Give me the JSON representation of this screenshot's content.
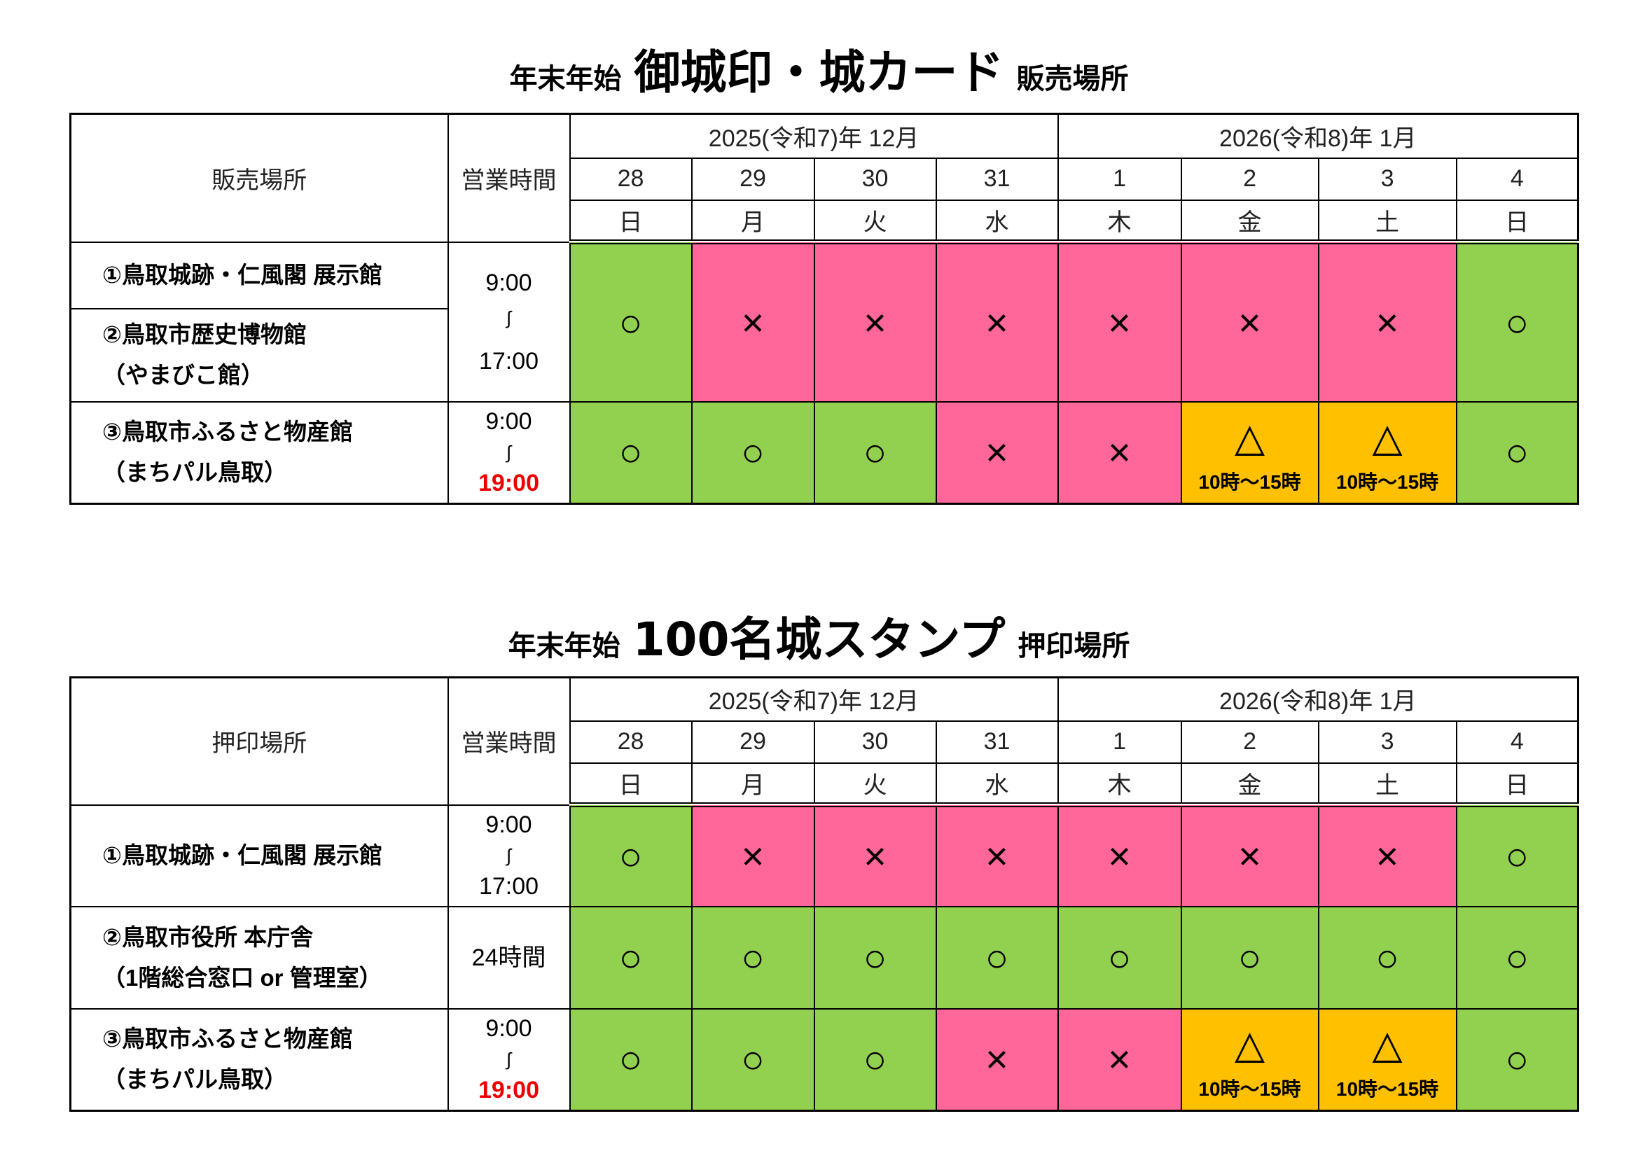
{
  "colors": {
    "available": "#92D050",
    "closed": "#FF6699",
    "limited": "#FFC000",
    "highlight_time": "#EE0000"
  },
  "symbols": {
    "o": "○",
    "x": "×",
    "t": "△"
  },
  "tables": [
    {
      "title_prefix": "年末年始",
      "title_main": "御城印・城カード",
      "title_suffix": "販売場所",
      "col_place": "販売場所",
      "col_hours": "営業時間",
      "month1": "2025(令和7)年 12月",
      "month2": "2026(令和8)年 1月",
      "dates": [
        "28",
        "29",
        "30",
        "31",
        "1",
        "2",
        "3",
        "4"
      ],
      "weekdays": [
        "日",
        "月",
        "火",
        "水",
        "木",
        "金",
        "土",
        "日"
      ],
      "rows": [
        {
          "places": [
            {
              "line1": "①鳥取城跡・仁風閣 展示館"
            },
            {
              "line1": "②鳥取市歴史博物館",
              "line2": "（やまびこ館）"
            }
          ],
          "hours": {
            "open": "9:00",
            "sep": "∫",
            "close": "17:00"
          },
          "cells": [
            {
              "s": "o"
            },
            {
              "s": "x"
            },
            {
              "s": "x"
            },
            {
              "s": "x"
            },
            {
              "s": "x"
            },
            {
              "s": "x"
            },
            {
              "s": "x"
            },
            {
              "s": "o"
            }
          ]
        },
        {
          "places": [
            {
              "line1": "③鳥取市ふるさと物産館",
              "line2": "（まちパル鳥取）"
            }
          ],
          "hours": {
            "open": "9:00",
            "sep": "∫",
            "close": "19:00",
            "close_red": true
          },
          "cells": [
            {
              "s": "o"
            },
            {
              "s": "o"
            },
            {
              "s": "o"
            },
            {
              "s": "x"
            },
            {
              "s": "x"
            },
            {
              "s": "t",
              "note": "10時～15時"
            },
            {
              "s": "t",
              "note": "10時～15時"
            },
            {
              "s": "o"
            }
          ]
        }
      ]
    },
    {
      "title_prefix": "年末年始",
      "title_main": "100名城スタンプ",
      "title_suffix": "押印場所",
      "col_place": "押印場所",
      "col_hours": "営業時間",
      "month1": "2025(令和7)年 12月",
      "month2": "2026(令和8)年 1月",
      "dates": [
        "28",
        "29",
        "30",
        "31",
        "1",
        "2",
        "3",
        "4"
      ],
      "weekdays": [
        "日",
        "月",
        "火",
        "水",
        "木",
        "金",
        "土",
        "日"
      ],
      "rows": [
        {
          "places": [
            {
              "line1": "①鳥取城跡・仁風閣 展示館"
            }
          ],
          "hours": {
            "open": "9:00",
            "sep": "∫",
            "close": "17:00"
          },
          "cells": [
            {
              "s": "o"
            },
            {
              "s": "x"
            },
            {
              "s": "x"
            },
            {
              "s": "x"
            },
            {
              "s": "x"
            },
            {
              "s": "x"
            },
            {
              "s": "x"
            },
            {
              "s": "o"
            }
          ]
        },
        {
          "places": [
            {
              "line1": "②鳥取市役所 本庁舎",
              "line2": "（1階総合窓口 or 管理室）"
            }
          ],
          "hours": {
            "text": "24時間"
          },
          "cells": [
            {
              "s": "o"
            },
            {
              "s": "o"
            },
            {
              "s": "o"
            },
            {
              "s": "o"
            },
            {
              "s": "o"
            },
            {
              "s": "o"
            },
            {
              "s": "o"
            },
            {
              "s": "o"
            }
          ]
        },
        {
          "places": [
            {
              "line1": "③鳥取市ふるさと物産館",
              "line2": "（まちパル鳥取）"
            }
          ],
          "hours": {
            "open": "9:00",
            "sep": "∫",
            "close": "19:00",
            "close_red": true
          },
          "cells": [
            {
              "s": "o"
            },
            {
              "s": "o"
            },
            {
              "s": "o"
            },
            {
              "s": "x"
            },
            {
              "s": "x"
            },
            {
              "s": "t",
              "note": "10時～15時"
            },
            {
              "s": "t",
              "note": "10時～15時"
            },
            {
              "s": "o"
            }
          ]
        }
      ]
    }
  ]
}
